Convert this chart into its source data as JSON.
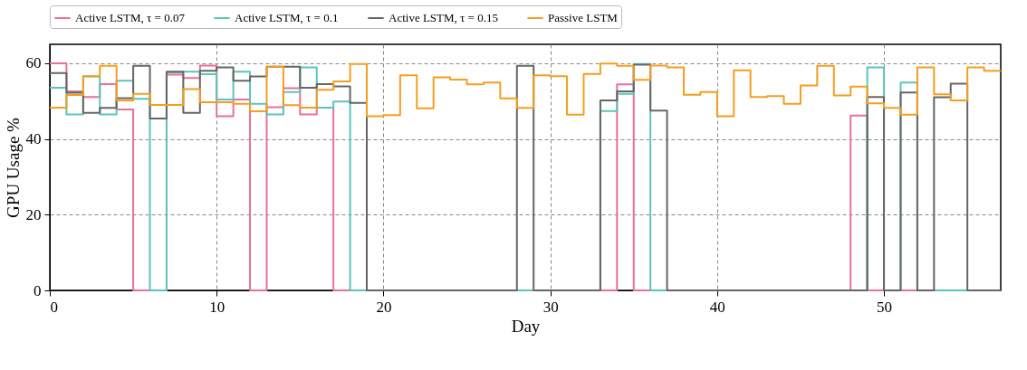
{
  "chart_data": {
    "type": "step",
    "xlabel": "Day",
    "ylabel": "GPU Usage %",
    "x": [
      0,
      1,
      2,
      3,
      4,
      5,
      6,
      7,
      8,
      9,
      10,
      11,
      12,
      13,
      14,
      15,
      16,
      17,
      18,
      19,
      20,
      21,
      22,
      23,
      24,
      25,
      26,
      27,
      28,
      29,
      30,
      31,
      32,
      33,
      34,
      35,
      36,
      37,
      38,
      39,
      40,
      41,
      42,
      43,
      44,
      45,
      46,
      47,
      48,
      49,
      50,
      51,
      52,
      53,
      54,
      55,
      56,
      57
    ],
    "xlim": [
      0,
      57
    ],
    "xticks": [
      0,
      10,
      20,
      30,
      40,
      50
    ],
    "ylim": [
      0,
      65
    ],
    "yticks": [
      0,
      20,
      40,
      60
    ],
    "grid": true,
    "legend": "top",
    "line_style": "solid",
    "marker": "none",
    "series": [
      {
        "name": "Active LSTM, τ = 0.07",
        "color": "#e8709c",
        "values": [
          60,
          52.6,
          51.1,
          54.5,
          47.8,
          0,
          0,
          57,
          56.1,
          59.4,
          46,
          50.4,
          0,
          48.4,
          53.4,
          46.5,
          48.3,
          0,
          0,
          null,
          null,
          null,
          null,
          null,
          null,
          null,
          null,
          null,
          null,
          null,
          null,
          null,
          null,
          0,
          54.4,
          0,
          0,
          null,
          null,
          null,
          null,
          null,
          null,
          null,
          null,
          null,
          null,
          0,
          46.2,
          0,
          0,
          0,
          0,
          null,
          null,
          null,
          null,
          null
        ]
      },
      {
        "name": "Active LSTM, τ = 0.1",
        "color": "#5bc5bd",
        "values": [
          53.5,
          46.5,
          56.5,
          46.5,
          55.4,
          50.6,
          0,
          57.6,
          57.8,
          57.1,
          50.4,
          57.8,
          49.3,
          46.5,
          52.4,
          58.9,
          48.3,
          49.9,
          0,
          0,
          null,
          null,
          null,
          null,
          null,
          null,
          null,
          null,
          0,
          0,
          null,
          null,
          0,
          47.4,
          51.9,
          59.8,
          0,
          0,
          null,
          null,
          null,
          null,
          null,
          null,
          null,
          null,
          null,
          null,
          0,
          58.9,
          0,
          54.9,
          0,
          0,
          0,
          0,
          null,
          null
        ]
      },
      {
        "name": "Active LSTM, τ = 0.15",
        "color": "#666666",
        "values": [
          57.4,
          52.2,
          46.9,
          48.2,
          50.8,
          59.3,
          45.4,
          57.8,
          46.9,
          58,
          58.9,
          55.4,
          56.5,
          59.1,
          59.1,
          53.5,
          54.5,
          53.9,
          49.5,
          0,
          0,
          0,
          0,
          0,
          0,
          0,
          0,
          0,
          59.3,
          0,
          0,
          0,
          0,
          50.2,
          52.6,
          59.6,
          47.5,
          0,
          0,
          0,
          0,
          0,
          0,
          0,
          0,
          0,
          0,
          0,
          0,
          51.1,
          0,
          52.3,
          0,
          51,
          54.6,
          0,
          0,
          0
        ]
      },
      {
        "name": "Passive LSTM",
        "color": "#f59e1f",
        "values": [
          48.3,
          51.6,
          56.6,
          59.3,
          50.2,
          51.9,
          49,
          49,
          53.2,
          49.7,
          49.7,
          49.3,
          47.3,
          59.1,
          48.9,
          48.3,
          53,
          55.2,
          59.8,
          46,
          46.3,
          56.8,
          48.1,
          56.3,
          55.7,
          54.4,
          54.9,
          50.7,
          48.2,
          56.8,
          56.6,
          46.4,
          57.2,
          59.9,
          59.3,
          55.6,
          59.4,
          58.9,
          51.7,
          52.4,
          46,
          58.1,
          51.1,
          51.3,
          49.3,
          54.1,
          59.3,
          51.5,
          53.8,
          49.4,
          48.2,
          46.4,
          58.9,
          51.8,
          50.2,
          58.9,
          58,
          58
        ]
      }
    ]
  }
}
